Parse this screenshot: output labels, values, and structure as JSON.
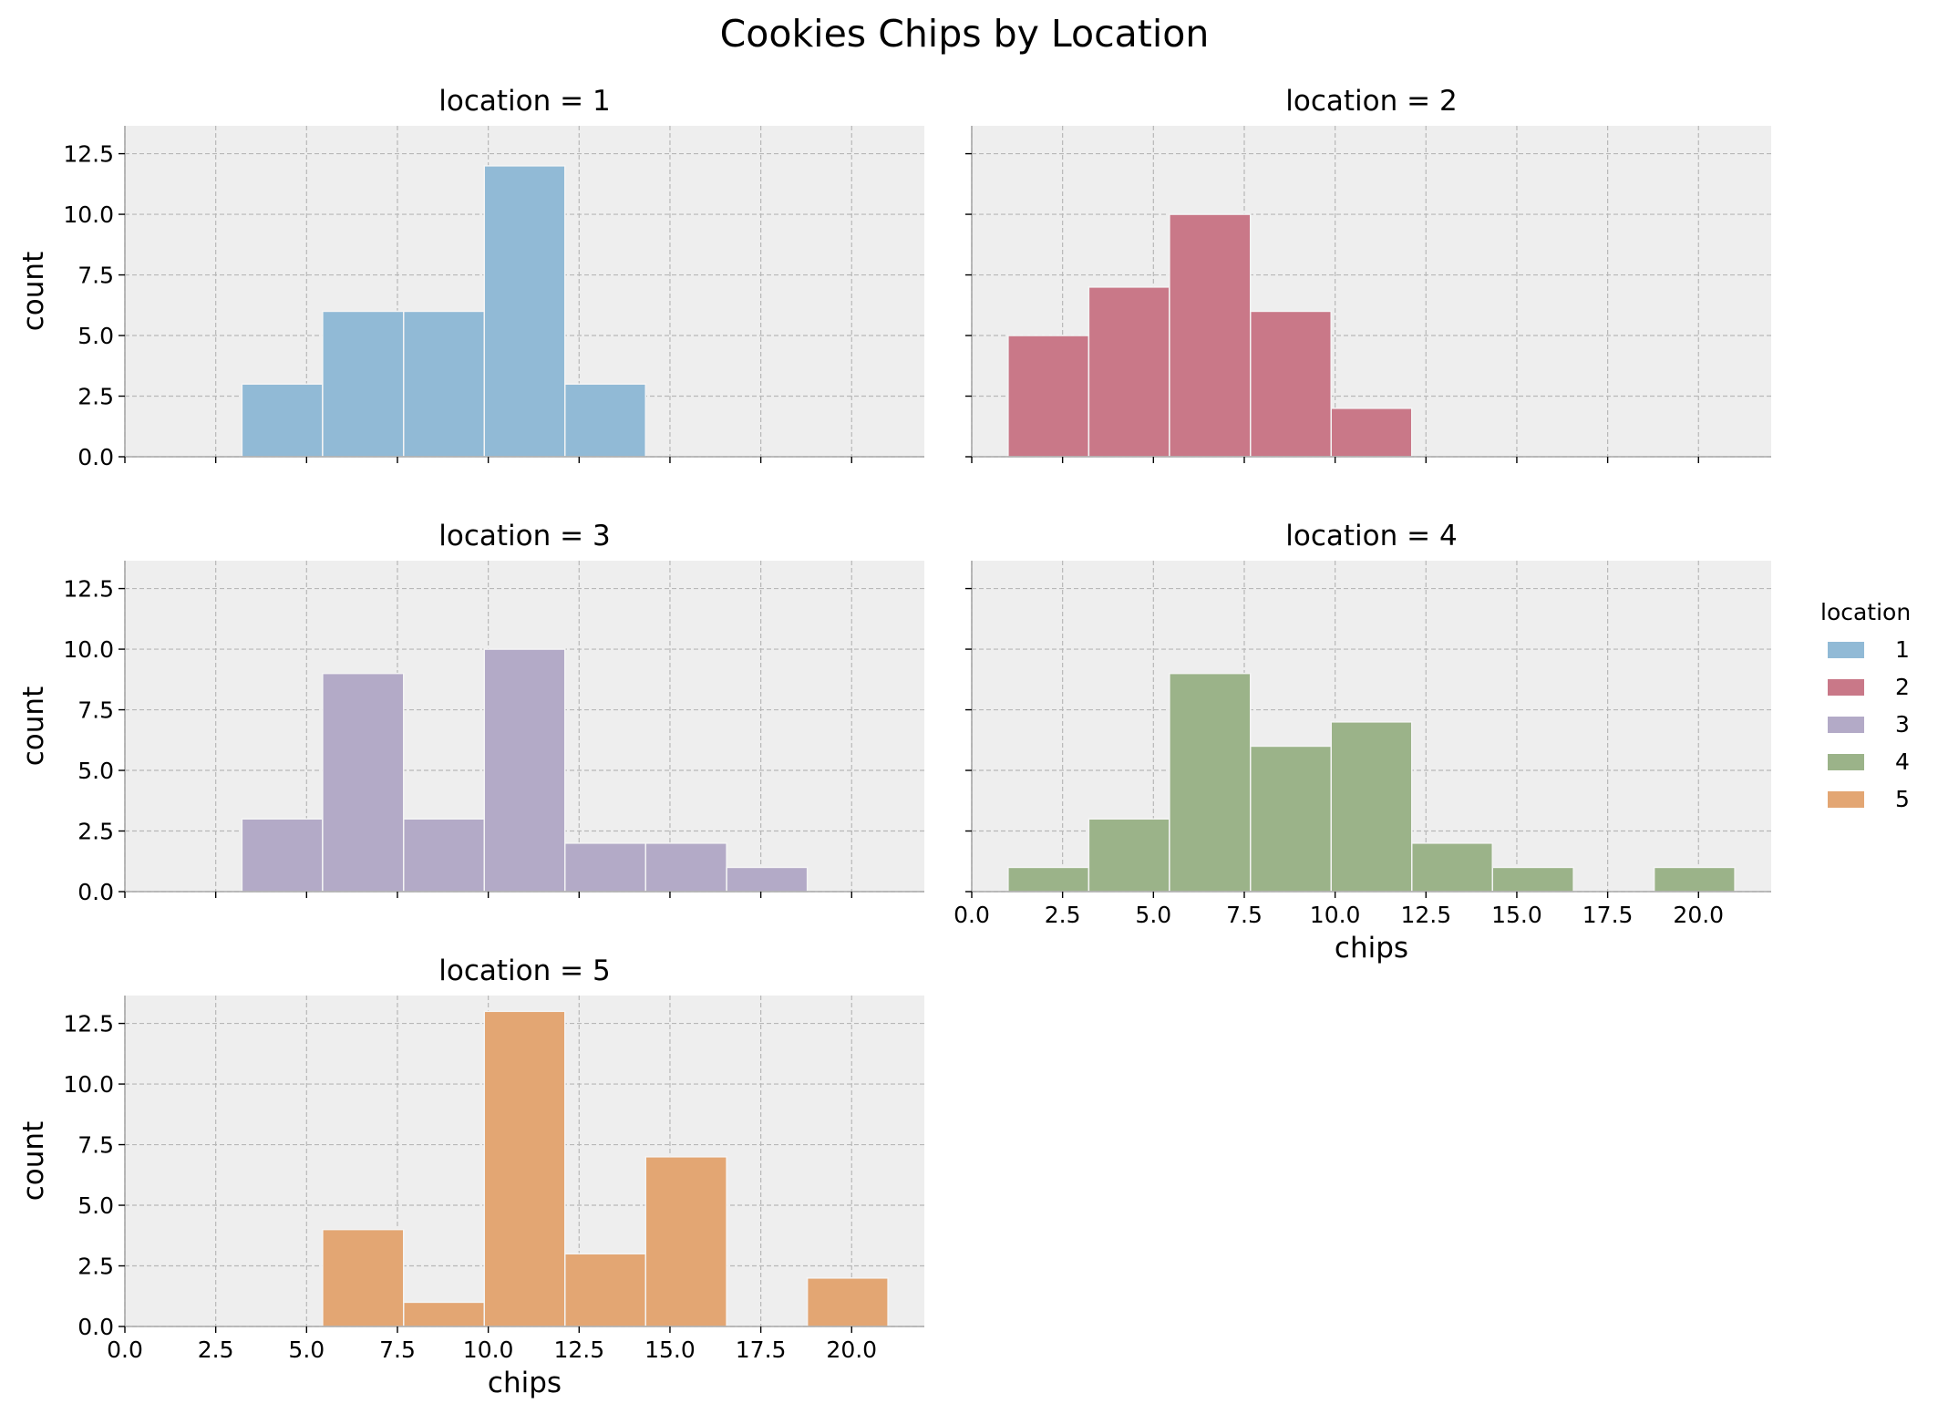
{
  "chart_data": {
    "type": "bar",
    "title": "Cookies Chips by Location",
    "xlabel": "chips",
    "ylabel": "count",
    "xlim": [
      0,
      22
    ],
    "ylim": [
      0,
      13.65
    ],
    "x_ticks": [
      0.0,
      2.5,
      5.0,
      7.5,
      10.0,
      12.5,
      15.0,
      17.5,
      20.0
    ],
    "x_tick_labels": [
      "0.0",
      "2.5",
      "5.0",
      "7.5",
      "10.0",
      "12.5",
      "15.0",
      "17.5",
      "20.0"
    ],
    "y_ticks": [
      0.0,
      2.5,
      5.0,
      7.5,
      10.0,
      12.5
    ],
    "y_tick_labels": [
      "0.0",
      "2.5",
      "5.0",
      "7.5",
      "10.0",
      "12.5"
    ],
    "bin_edges": [
      1.0,
      3.22,
      5.44,
      7.67,
      9.89,
      12.11,
      14.33,
      16.56,
      18.78,
      21.0
    ],
    "grid": true,
    "legend_title": "location",
    "legend_placement": "right",
    "panels": [
      {
        "title": "location = 1",
        "series": "1",
        "color": "#91bad6",
        "counts": [
          0,
          3,
          6,
          6,
          12,
          3,
          0,
          0,
          0
        ]
      },
      {
        "title": "location = 2",
        "series": "2",
        "color": "#c97888",
        "counts": [
          5,
          7,
          10,
          6,
          2,
          0,
          0,
          0,
          0
        ]
      },
      {
        "title": "location = 3",
        "series": "3",
        "color": "#b3aac7",
        "counts": [
          0,
          3,
          9,
          3,
          10,
          2,
          2,
          1,
          0
        ]
      },
      {
        "title": "location = 4",
        "series": "4",
        "color": "#9bb389",
        "counts": [
          1,
          3,
          9,
          6,
          7,
          2,
          1,
          0,
          1
        ]
      },
      {
        "title": "location = 5",
        "series": "5",
        "color": "#e3a673",
        "counts": [
          0,
          0,
          4,
          1,
          13,
          3,
          7,
          0,
          2
        ]
      }
    ],
    "legend": [
      {
        "label": "1",
        "color": "#91bad6"
      },
      {
        "label": "2",
        "color": "#c97888"
      },
      {
        "label": "3",
        "color": "#b3aac7"
      },
      {
        "label": "4",
        "color": "#9bb389"
      },
      {
        "label": "5",
        "color": "#e3a673"
      }
    ]
  },
  "colors": {
    "panel_background": "#eeeeee",
    "grid": "#b8b8b8",
    "spine": "#a8a8a8",
    "bar_edge": "#f4f4f4"
  }
}
